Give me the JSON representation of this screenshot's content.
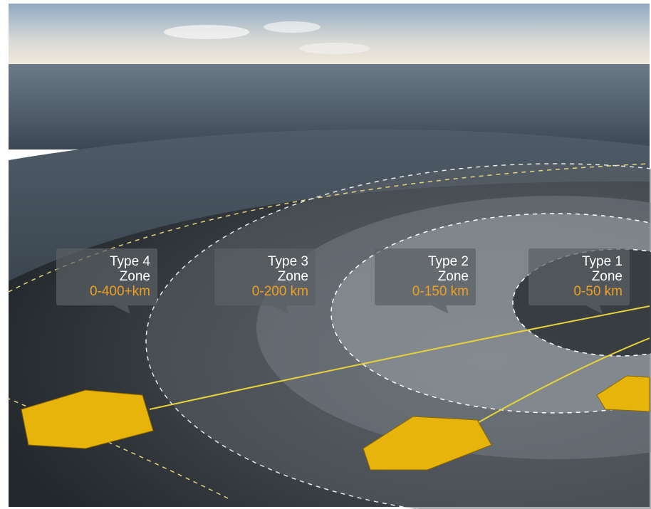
{
  "zones": [
    {
      "type": "Type 4",
      "zone": "Zone",
      "range": "0-400+km"
    },
    {
      "type": "Type 3",
      "zone": "Zone",
      "range": "0-200 km"
    },
    {
      "type": "Type 2",
      "zone": "Zone",
      "range": "0-150 km"
    },
    {
      "type": "Type 1",
      "zone": "Zone",
      "range": "0-50 km"
    }
  ]
}
